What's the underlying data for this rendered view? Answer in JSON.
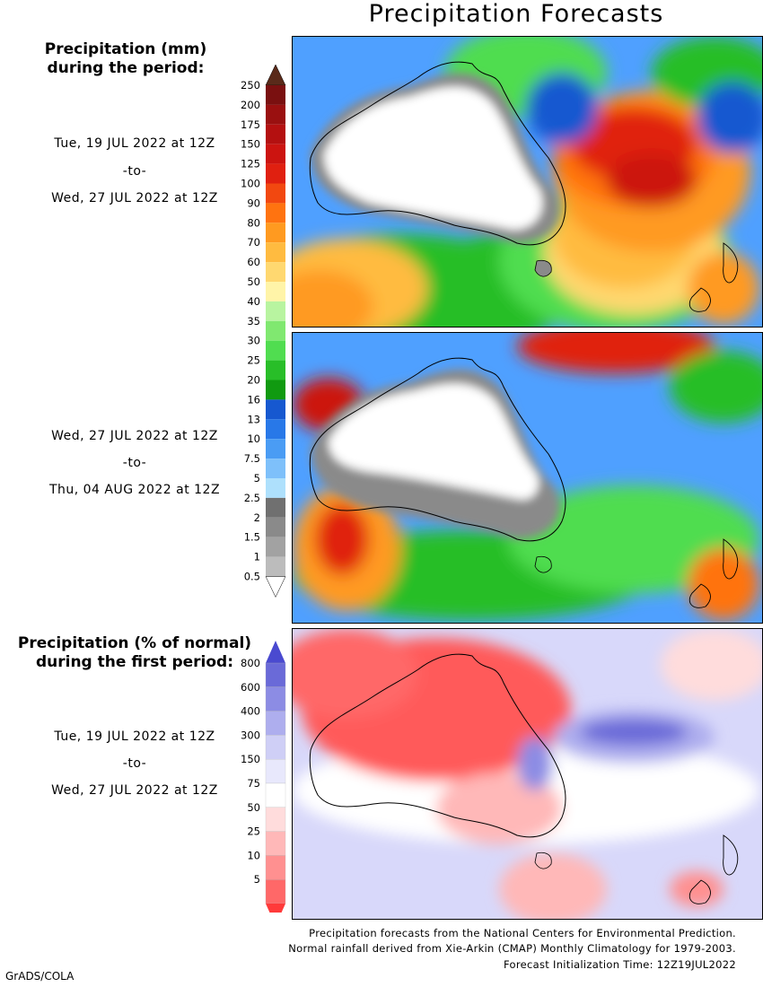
{
  "title": "Precipitation Forecasts",
  "legend1": {
    "heading_line1": "Precipitation (mm)",
    "heading_line2": "during the period:",
    "labels": [
      "250",
      "200",
      "175",
      "150",
      "125",
      "100",
      "90",
      "80",
      "70",
      "60",
      "50",
      "40",
      "35",
      "30",
      "25",
      "20",
      "16",
      "13",
      "10",
      "7.5",
      "5",
      "2.5",
      "2",
      "1.5",
      "1",
      "0.5"
    ],
    "colors": [
      "#7a1010",
      "#9a1010",
      "#b41010",
      "#cc1410",
      "#e02010",
      "#f24810",
      "#ff7310",
      "#ff9a20",
      "#ffbb40",
      "#ffd870",
      "#fff4a8",
      "#b8f4a0",
      "#80e870",
      "#50dd50",
      "#28be28",
      "#109a10",
      "#1658d0",
      "#2878e8",
      "#4a9cf4",
      "#7ec0fa",
      "#aee0fc",
      "#707070",
      "#8a8a8a",
      "#a2a2a2",
      "#bcbcbc"
    ],
    "top_arrow_color": "#5a2a1a"
  },
  "legend2": {
    "heading_line1": "Precipitation (% of normal)",
    "heading_line2": "during the first period:",
    "labels": [
      "800",
      "600",
      "400",
      "300",
      "150",
      "75",
      "50",
      "25",
      "10",
      "5"
    ],
    "colors": [
      "#6a6ad8",
      "#8c8ce4",
      "#aeaeee",
      "#cfcff6",
      "#e8e8fc",
      "#ffffff",
      "#ffdcdc",
      "#ffb8b8",
      "#ff9090",
      "#ff6868"
    ],
    "top_arrow_color": "#4a4ad0",
    "bottom_arrow_color": "#ff3a3a"
  },
  "periods": [
    {
      "start": "Tue, 19 JUL 2022 at 12Z",
      "sep": "-to-",
      "end": "Wed, 27 JUL 2022 at 12Z"
    },
    {
      "start": "Wed, 27 JUL 2022 at 12Z",
      "sep": "-to-",
      "end": "Thu, 04 AUG 2022 at 12Z"
    },
    {
      "start": "Tue, 19 JUL 2022 at 12Z",
      "sep": "-to-",
      "end": "Wed, 27 JUL 2022 at 12Z"
    }
  ],
  "credits": {
    "line1": "Precipitation forecasts from the National Centers for Environmental Prediction.",
    "line2": "Normal rainfall derived from Xie-Arkin (CMAP) Monthly Climatology for 1979-2003.",
    "line3": "Forecast Initialization Time: 12Z19JUL2022"
  },
  "software_label": "GrADS/COLA",
  "chart_data": {
    "type": "heatmap",
    "title": "Precipitation Forecasts",
    "panels": [
      {
        "name": "Precipitation (mm)",
        "period": "Tue, 19 JUL 2022 at 12Z -to- Wed, 27 JUL 2022 at 12Z",
        "region": "Australia / New Zealand"
      },
      {
        "name": "Precipitation (mm)",
        "period": "Wed, 27 JUL 2022 at 12Z -to- Thu, 04 AUG 2022 at 12Z",
        "region": "Australia / New Zealand"
      },
      {
        "name": "Precipitation (% of normal)",
        "period": "Tue, 19 JUL 2022 at 12Z -to- Wed, 27 JUL 2022 at 12Z",
        "region": "Australia / New Zealand"
      }
    ],
    "scale_mm": [
      0.5,
      1,
      1.5,
      2,
      2.5,
      5,
      7.5,
      10,
      13,
      16,
      20,
      25,
      30,
      35,
      40,
      50,
      60,
      70,
      80,
      90,
      100,
      125,
      150,
      175,
      200,
      250
    ],
    "scale_pct": [
      5,
      10,
      25,
      50,
      75,
      150,
      300,
      400,
      600,
      800
    ]
  }
}
